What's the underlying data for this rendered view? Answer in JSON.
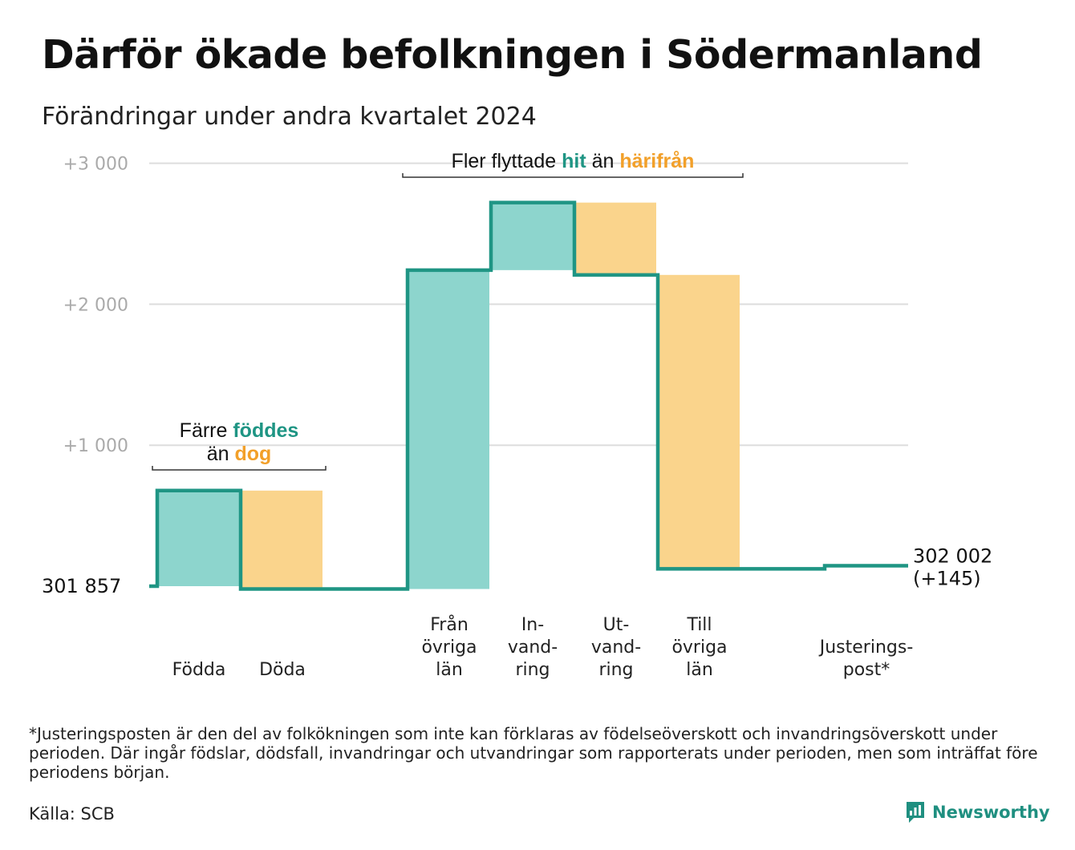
{
  "title": "Därför ökade befolkningen i Södermanland",
  "subtitle": "Förändringar under andra kvartalet 2024",
  "colors": {
    "inflow": "#8dd5cd",
    "outflow": "#fad48c",
    "line": "#1f9584",
    "teal_text": "#1f9584",
    "orange_text": "#f2a02a",
    "grid": "#dddddd",
    "axis_label": "#aaaaaa"
  },
  "chart_data": {
    "type": "bar",
    "subtype": "waterfall",
    "title": "Därför ökade befolkningen i Södermanland",
    "subtitle": "Förändringar under andra kvartalet 2024",
    "start_value": 301857,
    "start_label": "301  857",
    "end_label": "302 002",
    "end_change_label": "(+145)",
    "ylim": [
      -20,
      3000
    ],
    "y_ticks": [
      {
        "value": 1000,
        "label": "+1  000"
      },
      {
        "value": 2000,
        "label": "+2  000"
      },
      {
        "value": 3000,
        "label": "+3  000"
      }
    ],
    "grid": true,
    "categories": [
      {
        "label_lines": [
          "Födda"
        ],
        "value": 678,
        "kind": "in"
      },
      {
        "label_lines": [
          "Döda"
        ],
        "value": -698,
        "kind": "out"
      },
      {
        "label_lines": [],
        "value": 0,
        "kind": "gap"
      },
      {
        "label_lines": [
          "Från",
          "övriga",
          "län"
        ],
        "value": 2262,
        "kind": "in"
      },
      {
        "label_lines": [
          "In-",
          "vand-",
          "ring"
        ],
        "value": 479,
        "kind": "in"
      },
      {
        "label_lines": [
          "Ut-",
          "vand-",
          "ring"
        ],
        "value": -513,
        "kind": "out"
      },
      {
        "label_lines": [
          "Till",
          "övriga",
          "län"
        ],
        "value": -2085,
        "kind": "out"
      },
      {
        "label_lines": [],
        "value": 0,
        "kind": "gap"
      },
      {
        "label_lines": [
          "Justerings-",
          "post*"
        ],
        "value": 22,
        "kind": "adjust"
      }
    ],
    "annotations": [
      {
        "group": [
          0,
          1
        ],
        "lines": [
          [
            {
              "t": "Färre ",
              "c": "plain"
            },
            {
              "t": "föddes",
              "c": "teal"
            }
          ],
          [
            {
              "t": "än ",
              "c": "plain"
            },
            {
              "t": "dog",
              "c": "orange"
            }
          ]
        ]
      },
      {
        "group": [
          3,
          6
        ],
        "lines": [
          [
            {
              "t": "Fler flyttade ",
              "c": "plain"
            },
            {
              "t": "hit",
              "c": "teal"
            },
            {
              "t": "  än ",
              "c": "plain"
            },
            {
              "t": "härifrån",
              "c": "orange"
            }
          ]
        ]
      }
    ]
  },
  "footnote": "*Justeringsposten är den del av folkökningen som inte kan förklaras av födelseöverskott och invandringsöverskott under perioden. Där ingår födslar, dödsfall, invandringar och utvandringar som rapporterats under perioden, men som inträffat före periodens början.",
  "source": "Källa: SCB",
  "logo_text": "Newsworthy",
  "logo_icon": "newsworthy-chart-bubble-icon"
}
